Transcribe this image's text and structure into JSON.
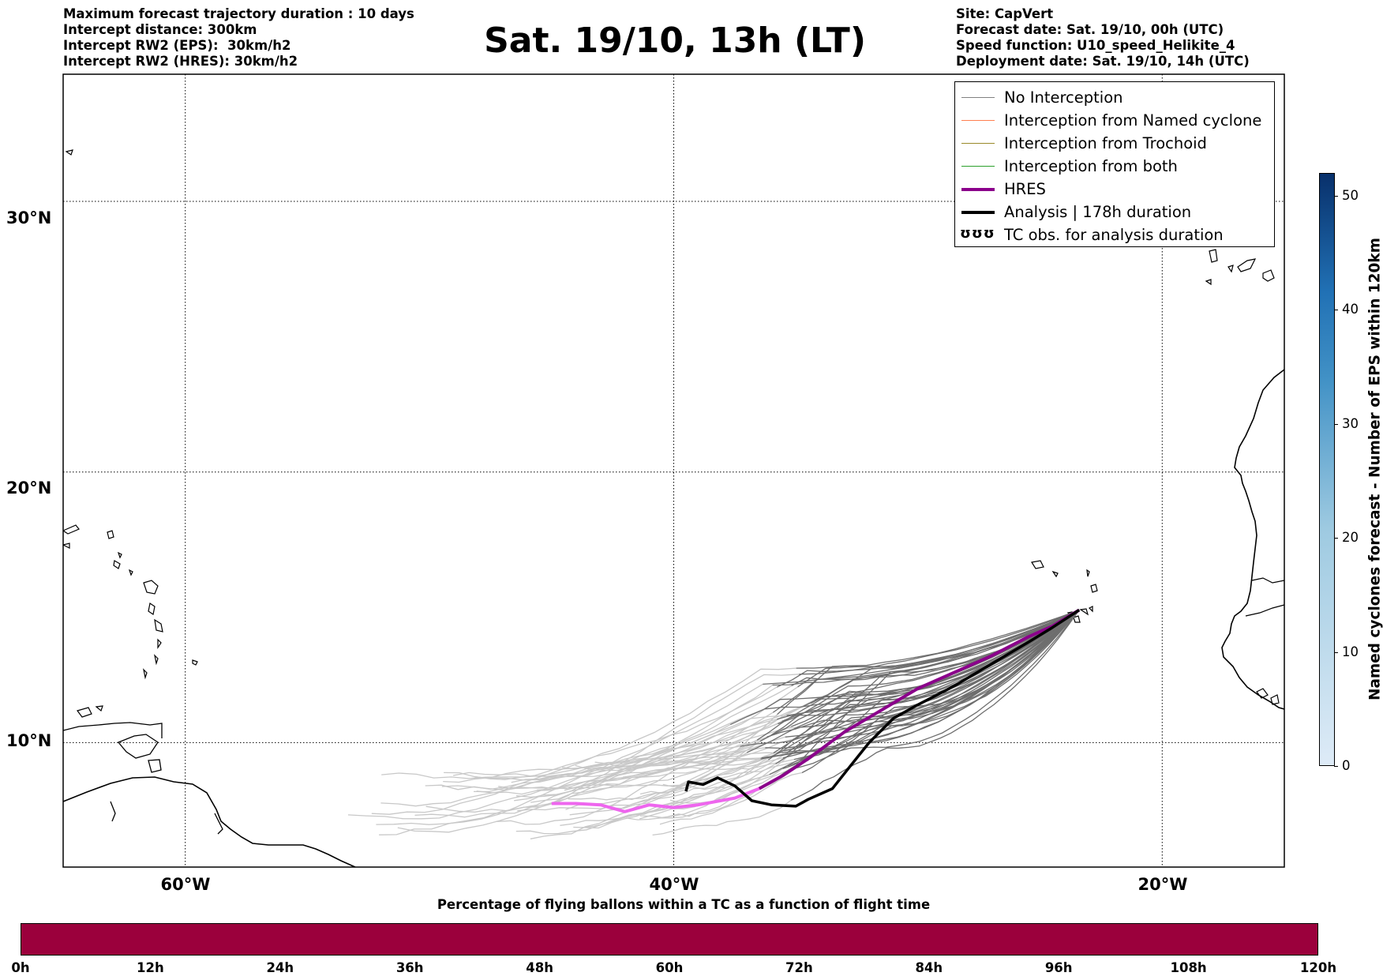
{
  "header": {
    "left": [
      "Maximum forecast trajectory duration : 10 days",
      "Intercept distance: 300km",
      "Intercept RW2 (EPS):  30km/h2",
      "Intercept RW2 (HRES): 30km/h2"
    ],
    "right": [
      "Site: CapVert",
      "Forecast date: Sat. 19/10, 00h (UTC)",
      "Speed function: U10_speed_Helikite_4",
      "Deployment date: Sat. 19/10, 14h (UTC)"
    ],
    "title": "Sat. 19/10, 13h (LT)"
  },
  "map": {
    "lon_range": [
      -65,
      -15
    ],
    "lat_range": [
      5.4,
      34.7
    ],
    "grid_lons": [
      -60,
      -40,
      -20
    ],
    "grid_lats": [
      10,
      20,
      30
    ],
    "lon_labels": [
      "60°W",
      "40°W",
      "20°W"
    ],
    "lat_labels": [
      "10°N",
      "20°N",
      "30°N"
    ],
    "origin": {
      "lon": -23.4,
      "lat": 14.9
    }
  },
  "legend": {
    "items": [
      {
        "label": "No Interception",
        "color": "#808080"
      },
      {
        "label": "Interception from Named cyclone",
        "color": "#ff7f50"
      },
      {
        "label": "Interception from Trochoid",
        "color": "#9a8a2a"
      },
      {
        "label": "Interception from both",
        "color": "#2ca02c"
      },
      {
        "label": "HRES",
        "color": "#8b008b"
      },
      {
        "label": "Analysis | 178h duration",
        "color": "#000000"
      },
      {
        "label": "TC obs. for analysis duration",
        "glyph": "ʊʊʊ"
      }
    ]
  },
  "colors": {
    "trajectory_dark": "#6e6e6e",
    "trajectory_light": "#c8c8c8",
    "hres": "#8b008b",
    "hres_late": "#ee66ee",
    "analysis": "#000000",
    "cbar_h_fill": "#9b003c",
    "cbar_v_top": "#08306b",
    "cbar_v_bottom": "#deebf7"
  },
  "chart_data": {
    "type": "line",
    "title": "Sat. 19/10, 13h (LT)",
    "hres_track": [
      [
        -23.4,
        14.9
      ],
      [
        -24.5,
        14.3
      ],
      [
        -25.5,
        13.9
      ],
      [
        -27,
        13.2
      ],
      [
        -28.5,
        12.6
      ],
      [
        -30,
        12.0
      ],
      [
        -31.5,
        11.2
      ],
      [
        -33,
        10.4
      ],
      [
        -34.5,
        9.4
      ],
      [
        -35.5,
        8.8
      ],
      [
        -36.5,
        8.3
      ],
      [
        -37.5,
        7.95
      ],
      [
        -39,
        7.7
      ],
      [
        -40,
        7.6
      ],
      [
        -41,
        7.7
      ],
      [
        -42,
        7.45
      ],
      [
        -43,
        7.7
      ],
      [
        -44,
        7.75
      ],
      [
        -45,
        7.75
      ]
    ],
    "hres_late_from_lon": -37,
    "analysis_track": [
      [
        -23.4,
        14.9
      ],
      [
        -24.5,
        14.25
      ],
      [
        -25.5,
        13.7
      ],
      [
        -27,
        12.9
      ],
      [
        -28.5,
        12.1
      ],
      [
        -30,
        11.4
      ],
      [
        -31,
        10.9
      ],
      [
        -32,
        10.0
      ],
      [
        -32.8,
        9.1
      ],
      [
        -33.5,
        8.3
      ],
      [
        -34.5,
        7.9
      ],
      [
        -35,
        7.65
      ],
      [
        -36,
        7.7
      ],
      [
        -36.8,
        7.85
      ],
      [
        -37.5,
        8.4
      ],
      [
        -38.2,
        8.7
      ],
      [
        -38.8,
        8.45
      ],
      [
        -39.4,
        8.55
      ],
      [
        -39.5,
        8.2
      ]
    ],
    "eps_member_count": 51,
    "cbar_vertical": {
      "label": "Named cyclones forecast - Number of EPS within 120km",
      "ticks": [
        0,
        10,
        20,
        30,
        40,
        50
      ],
      "range": [
        0,
        52
      ]
    },
    "cbar_horizontal": {
      "title": "Percentage of flying ballons within a TC as a function of flight time",
      "ticks": [
        "0h",
        "12h",
        "24h",
        "36h",
        "48h",
        "60h",
        "72h",
        "84h",
        "96h",
        "108h",
        "120h"
      ]
    }
  }
}
